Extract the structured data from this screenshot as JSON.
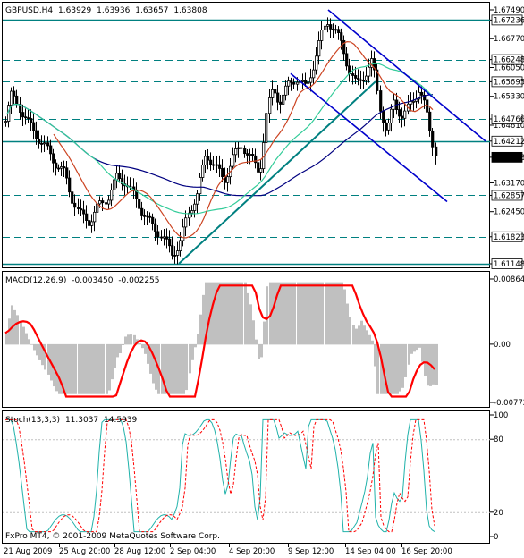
{
  "title": {
    "symbol": "GBPUSD,H4",
    "open": "1.63929",
    "high": "1.63936",
    "low": "1.63657",
    "close": "1.63808"
  },
  "price_axis": [
    {
      "label": "1.67490",
      "value": 1.6749,
      "boxed": false
    },
    {
      "label": "1.67236",
      "value": 1.67236,
      "boxed": true
    },
    {
      "label": "1.66770",
      "value": 1.6677,
      "boxed": false
    },
    {
      "label": "1.66248",
      "value": 1.66248,
      "boxed": true
    },
    {
      "label": "1.66050",
      "value": 1.6605,
      "boxed": false
    },
    {
      "label": "1.65695",
      "value": 1.65695,
      "boxed": true
    },
    {
      "label": "1.65330",
      "value": 1.6533,
      "boxed": false
    },
    {
      "label": "1.64610",
      "value": 1.6461,
      "boxed": false
    },
    {
      "label": "1.64766",
      "value": 1.64766,
      "boxed": true
    },
    {
      "label": "1.64212",
      "value": 1.64212,
      "boxed": true
    },
    {
      "label": "1.63808",
      "value": 1.63808,
      "boxed": true,
      "current": true
    },
    {
      "label": "1.63170",
      "value": 1.6317,
      "boxed": false
    },
    {
      "label": "1.62857",
      "value": 1.62857,
      "boxed": true
    },
    {
      "label": "1.62450",
      "value": 1.6245,
      "boxed": false
    },
    {
      "label": "1.61823",
      "value": 1.61823,
      "boxed": true
    },
    {
      "label": "1.61148",
      "value": 1.61148,
      "boxed": true
    }
  ],
  "macd": {
    "label": "MACD(12,26,9)",
    "value1": "-0.003450",
    "value2": "-0.002255",
    "axis": [
      "0.00864",
      "0.00",
      "-0.00772"
    ]
  },
  "stoch": {
    "label": "Stoch(13,3,3)",
    "value1": "11.3037",
    "value2": "14.5939",
    "axis": [
      "100",
      "80",
      "20",
      "0"
    ]
  },
  "copyright": "FxPro MT4, © 2001-2009 MetaQuotes Software Corp.",
  "time_axis": [
    "21 Aug 2009",
    "25 Aug 20:00",
    "28 Aug 12:00",
    "2 Sep 04:00",
    "4 Sep 20:00",
    "9 Sep 12:00",
    "14 Sep 04:00",
    "16 Sep 20:00"
  ],
  "colors": {
    "bull_line": "#008080",
    "channel": "#0000cc",
    "ma_red": "#cc4422",
    "ma_green": "#33cc99",
    "ma_navy": "#000080",
    "macd_signal": "#ff0000",
    "macd_hist": "#c0c0c0",
    "stoch_main": "#20b2aa",
    "stoch_signal": "#ff0000",
    "hline": "#008080"
  }
}
